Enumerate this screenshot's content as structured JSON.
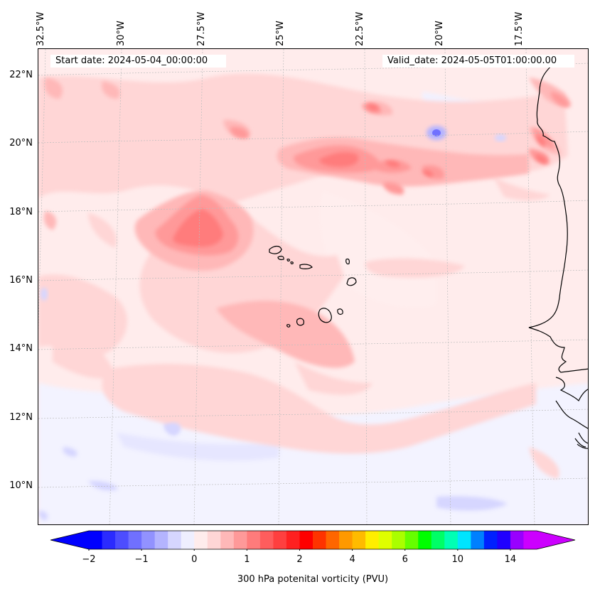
{
  "map": {
    "start_label": "Start date: 2024-05-04_00:00:00",
    "valid_label": "Valid_date: 2024-05-05T01:00:00.00",
    "variable": "300 hPa potenital vorticity (PVU)",
    "region": "Cape Verde Islands and West African coast (Senegal, Guinea-Bissau)",
    "longitude_labels": [
      "32.5°W",
      "30°W",
      "27.5°W",
      "25°W",
      "22.5°W",
      "20°W",
      "17.5°W"
    ],
    "latitude_labels": [
      "22°N",
      "20°N",
      "18°N",
      "16°N",
      "14°N",
      "12°N",
      "10°N"
    ],
    "extent": {
      "lon_min": -33,
      "lon_max": -15,
      "lat_min": 9,
      "lat_max": 23
    }
  },
  "colorbar": {
    "tick_labels": [
      "−2",
      "−1",
      "0",
      "1",
      "2",
      "4",
      "6",
      "10",
      "14"
    ],
    "colors": [
      "#0000ff",
      "#2b2bff",
      "#4d4dff",
      "#7070ff",
      "#9292ff",
      "#b4b4ff",
      "#d6d6ff",
      "#efefff",
      "#ffecec",
      "#ffd6d6",
      "#ffb8b8",
      "#ff9999",
      "#ff7b7b",
      "#ff5d5d",
      "#ff3f3f",
      "#ff2020",
      "#ff0000",
      "#ff3300",
      "#ff6600",
      "#ff9900",
      "#ffbb00",
      "#ffee00",
      "#dfff00",
      "#aaff00",
      "#66ff00",
      "#00ff00",
      "#00ff66",
      "#00ffb4",
      "#00e5ff",
      "#0080ff",
      "#0020ff",
      "#2000ff",
      "#9900ff",
      "#cc00ff"
    ]
  }
}
